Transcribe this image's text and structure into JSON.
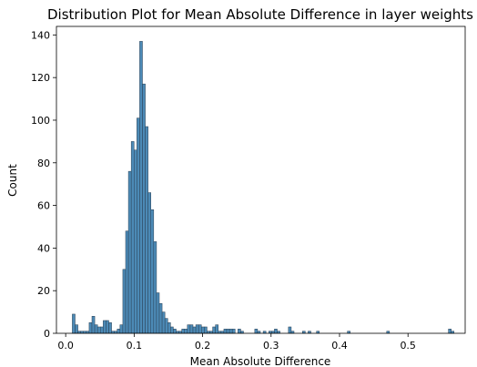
{
  "chart_data": {
    "type": "bar",
    "title": "Distribution Plot for Mean Absolute Difference in layer weights",
    "xlabel": "Mean Absolute Difference",
    "ylabel": "Count",
    "xlim": [
      -0.0135,
      0.5835
    ],
    "ylim": [
      0,
      144
    ],
    "xticks": [
      0.0,
      0.1,
      0.2,
      0.3,
      0.4,
      0.5
    ],
    "xtick_labels": [
      "0.0",
      "0.1",
      "0.2",
      "0.3",
      "0.4",
      "0.5"
    ],
    "yticks": [
      0,
      20,
      40,
      60,
      80,
      100,
      120,
      140
    ],
    "ytick_labels": [
      "0",
      "20",
      "40",
      "60",
      "80",
      "100",
      "120",
      "140"
    ],
    "grid": false,
    "legend": "none",
    "bin_width": 0.0041,
    "bar_fill": "#4c8ab6",
    "bar_edge": "#2a3f52",
    "bins": [
      {
        "x": 0.0117,
        "count": 9
      },
      {
        "x": 0.0158,
        "count": 4
      },
      {
        "x": 0.0199,
        "count": 1
      },
      {
        "x": 0.024,
        "count": 1
      },
      {
        "x": 0.0281,
        "count": 1
      },
      {
        "x": 0.0322,
        "count": 1
      },
      {
        "x": 0.0363,
        "count": 5
      },
      {
        "x": 0.0404,
        "count": 8
      },
      {
        "x": 0.0445,
        "count": 4
      },
      {
        "x": 0.0486,
        "count": 3
      },
      {
        "x": 0.0527,
        "count": 3
      },
      {
        "x": 0.0568,
        "count": 6
      },
      {
        "x": 0.0609,
        "count": 6
      },
      {
        "x": 0.065,
        "count": 5
      },
      {
        "x": 0.0691,
        "count": 1
      },
      {
        "x": 0.0732,
        "count": 1
      },
      {
        "x": 0.0773,
        "count": 2
      },
      {
        "x": 0.0814,
        "count": 4
      },
      {
        "x": 0.0855,
        "count": 30
      },
      {
        "x": 0.0896,
        "count": 48
      },
      {
        "x": 0.0937,
        "count": 76
      },
      {
        "x": 0.0978,
        "count": 90
      },
      {
        "x": 0.1019,
        "count": 86
      },
      {
        "x": 0.106,
        "count": 101
      },
      {
        "x": 0.1101,
        "count": 137
      },
      {
        "x": 0.1142,
        "count": 117
      },
      {
        "x": 0.1183,
        "count": 97
      },
      {
        "x": 0.1224,
        "count": 66
      },
      {
        "x": 0.1265,
        "count": 58
      },
      {
        "x": 0.1306,
        "count": 43
      },
      {
        "x": 0.1347,
        "count": 19
      },
      {
        "x": 0.1388,
        "count": 14
      },
      {
        "x": 0.1429,
        "count": 10
      },
      {
        "x": 0.147,
        "count": 7
      },
      {
        "x": 0.1511,
        "count": 5
      },
      {
        "x": 0.1552,
        "count": 3
      },
      {
        "x": 0.1593,
        "count": 2
      },
      {
        "x": 0.1634,
        "count": 1
      },
      {
        "x": 0.1675,
        "count": 1
      },
      {
        "x": 0.1716,
        "count": 2
      },
      {
        "x": 0.1757,
        "count": 2
      },
      {
        "x": 0.1798,
        "count": 4
      },
      {
        "x": 0.1839,
        "count": 4
      },
      {
        "x": 0.188,
        "count": 3
      },
      {
        "x": 0.1921,
        "count": 4
      },
      {
        "x": 0.1962,
        "count": 4
      },
      {
        "x": 0.2003,
        "count": 3
      },
      {
        "x": 0.2044,
        "count": 3
      },
      {
        "x": 0.2085,
        "count": 1
      },
      {
        "x": 0.2126,
        "count": 1
      },
      {
        "x": 0.2167,
        "count": 3
      },
      {
        "x": 0.2208,
        "count": 4
      },
      {
        "x": 0.2249,
        "count": 1
      },
      {
        "x": 0.229,
        "count": 1
      },
      {
        "x": 0.2331,
        "count": 2
      },
      {
        "x": 0.2372,
        "count": 2
      },
      {
        "x": 0.2413,
        "count": 2
      },
      {
        "x": 0.2454,
        "count": 2
      },
      {
        "x": 0.2536,
        "count": 2
      },
      {
        "x": 0.2577,
        "count": 1
      },
      {
        "x": 0.2782,
        "count": 2
      },
      {
        "x": 0.2823,
        "count": 1
      },
      {
        "x": 0.2905,
        "count": 1
      },
      {
        "x": 0.2987,
        "count": 1
      },
      {
        "x": 0.3028,
        "count": 1
      },
      {
        "x": 0.3069,
        "count": 2
      },
      {
        "x": 0.311,
        "count": 1
      },
      {
        "x": 0.3274,
        "count": 3
      },
      {
        "x": 0.3315,
        "count": 1
      },
      {
        "x": 0.3479,
        "count": 1
      },
      {
        "x": 0.3561,
        "count": 1
      },
      {
        "x": 0.3684,
        "count": 1
      },
      {
        "x": 0.4135,
        "count": 1
      },
      {
        "x": 0.4709,
        "count": 1
      },
      {
        "x": 0.5611,
        "count": 2
      },
      {
        "x": 0.5652,
        "count": 1
      }
    ]
  }
}
